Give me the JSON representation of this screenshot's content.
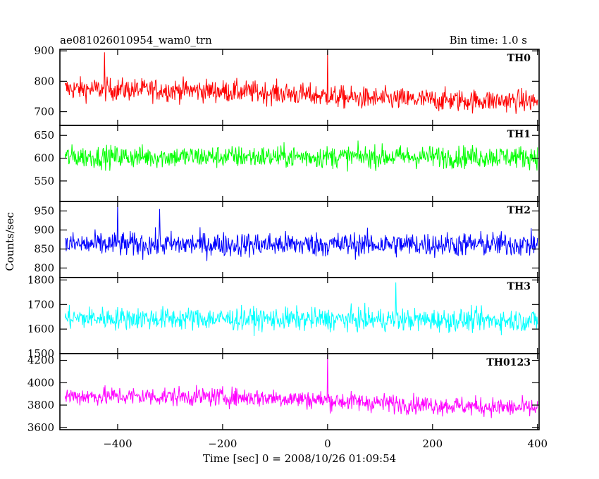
{
  "header": {
    "title": "ae081026010954_wam0_trn",
    "bin_time": "Bin time: 1.0 s"
  },
  "axes": {
    "xlabel": "Time [sec] 0 = 2008/10/26 01:09:54",
    "ylabel": "Counts/sec"
  },
  "chart_data": {
    "type": "line",
    "title": "ae081026010954_wam0_trn",
    "xlabel": "Time [sec] 0 = 2008/10/26 01:09:54",
    "ylabel": "Counts/sec",
    "xlim": [
      -510,
      403
    ],
    "x_ticks": [
      -400,
      -200,
      0,
      200,
      400
    ],
    "x_tick_labels": [
      "−400",
      "−200",
      "0",
      "200",
      "400"
    ],
    "bin_time_s": 1.0,
    "x_start": -500,
    "x_end": 400,
    "grid": false,
    "panels": [
      {
        "name": "TH0",
        "color": "#ff0000",
        "ylim": [
          655,
          905
        ],
        "y_ticks": [
          700,
          800,
          900
        ],
        "trend": [
          [
            -500,
            775
          ],
          [
            -250,
            770
          ],
          [
            -100,
            762
          ],
          [
            50,
            745
          ],
          [
            200,
            738
          ],
          [
            400,
            735
          ]
        ],
        "noise_amplitude": 48,
        "spikes": [
          [
            -425,
            895
          ],
          [
            0,
            900
          ]
        ]
      },
      {
        "name": "TH1",
        "color": "#00ff00",
        "ylim": [
          505,
          672
        ],
        "y_ticks": [
          550,
          600,
          650
        ],
        "trend": [
          [
            -500,
            603
          ],
          [
            400,
            603
          ]
        ],
        "noise_amplitude": 32,
        "spikes": []
      },
      {
        "name": "TH2",
        "color": "#0000ff",
        "ylim": [
          775,
          975
        ],
        "y_ticks": [
          800,
          850,
          900,
          950
        ],
        "trend": [
          [
            -500,
            862
          ],
          [
            400,
            862
          ]
        ],
        "noise_amplitude": 42,
        "spikes": [
          [
            -400,
            975
          ],
          [
            -320,
            955
          ]
        ]
      },
      {
        "name": "TH3",
        "color": "#00ffff",
        "ylim": [
          1500,
          1810
        ],
        "y_ticks": [
          1500,
          1600,
          1700,
          1800
        ],
        "trend": [
          [
            -500,
            1645
          ],
          [
            400,
            1635
          ]
        ],
        "noise_amplitude": 60,
        "spikes": [
          [
            130,
            1790
          ]
        ]
      },
      {
        "name": "TH0123",
        "color": "#ff00ff",
        "ylim": [
          3580,
          4260
        ],
        "y_ticks": [
          3600,
          3800,
          4000,
          4200
        ],
        "trend": [
          [
            -500,
            3880
          ],
          [
            -250,
            3875
          ],
          [
            -100,
            3865
          ],
          [
            50,
            3830
          ],
          [
            200,
            3800
          ],
          [
            400,
            3770
          ]
        ],
        "noise_amplitude": 110,
        "spikes": [
          [
            0,
            4260
          ]
        ]
      }
    ]
  }
}
